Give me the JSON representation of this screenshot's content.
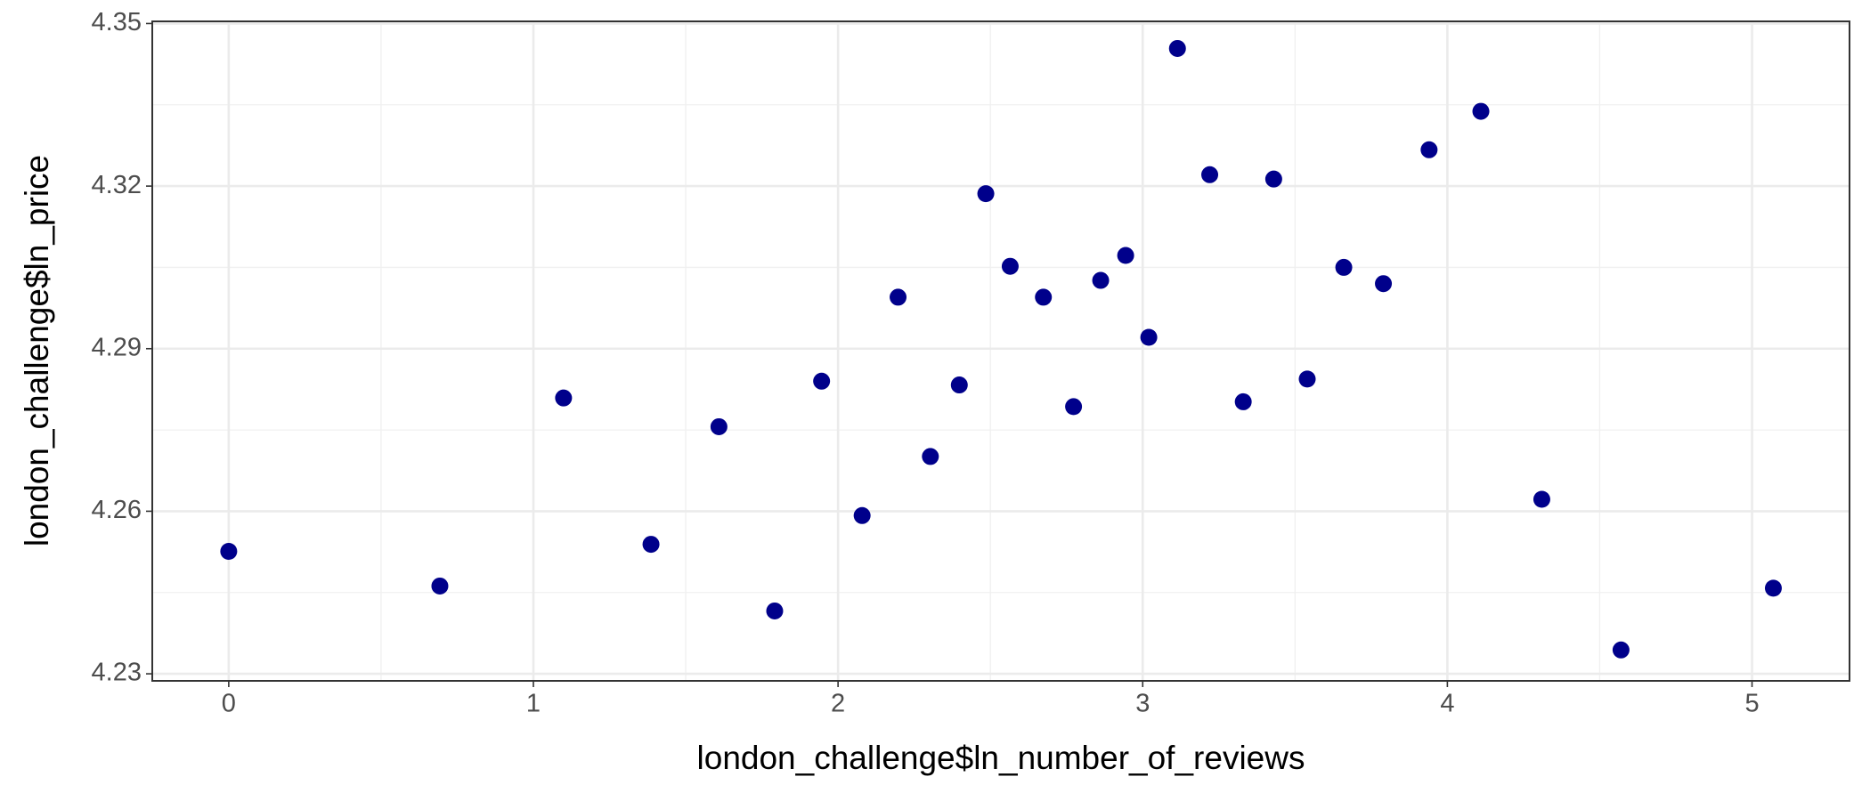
{
  "chart_data": {
    "type": "scatter",
    "x_label": "london_challenge$ln_number_of_reviews",
    "y_label": "london_challenge$ln_price",
    "color": "#00008b",
    "grid": true,
    "minor_grid": true,
    "xlim": [
      -0.251,
      5.32
    ],
    "ylim": [
      4.2287,
      4.3504
    ],
    "xticks": [
      0,
      1,
      2,
      3,
      4,
      5
    ],
    "yticks": [
      4.23,
      4.26,
      4.29,
      4.32,
      4.35
    ],
    "x": [
      0,
      0.693,
      1.099,
      1.386,
      1.609,
      1.792,
      1.946,
      2.079,
      2.197,
      2.303,
      2.398,
      2.485,
      2.565,
      2.674,
      2.773,
      2.862,
      2.944,
      3.02,
      3.114,
      3.22,
      3.33,
      3.43,
      3.54,
      3.66,
      3.79,
      3.94,
      4.11,
      4.31,
      4.57,
      5.07
    ],
    "y": [
      4.2526,
      4.2462,
      4.2809,
      4.2539,
      4.2756,
      4.2416,
      4.284,
      4.2592,
      4.2995,
      4.2701,
      4.2833,
      4.3186,
      4.3052,
      4.2995,
      4.2793,
      4.3026,
      4.3072,
      4.2921,
      4.3454,
      4.3221,
      4.2802,
      4.3213,
      4.2844,
      4.305,
      4.302,
      4.3267,
      4.3338,
      4.2622,
      4.2344,
      4.2458
    ]
  }
}
